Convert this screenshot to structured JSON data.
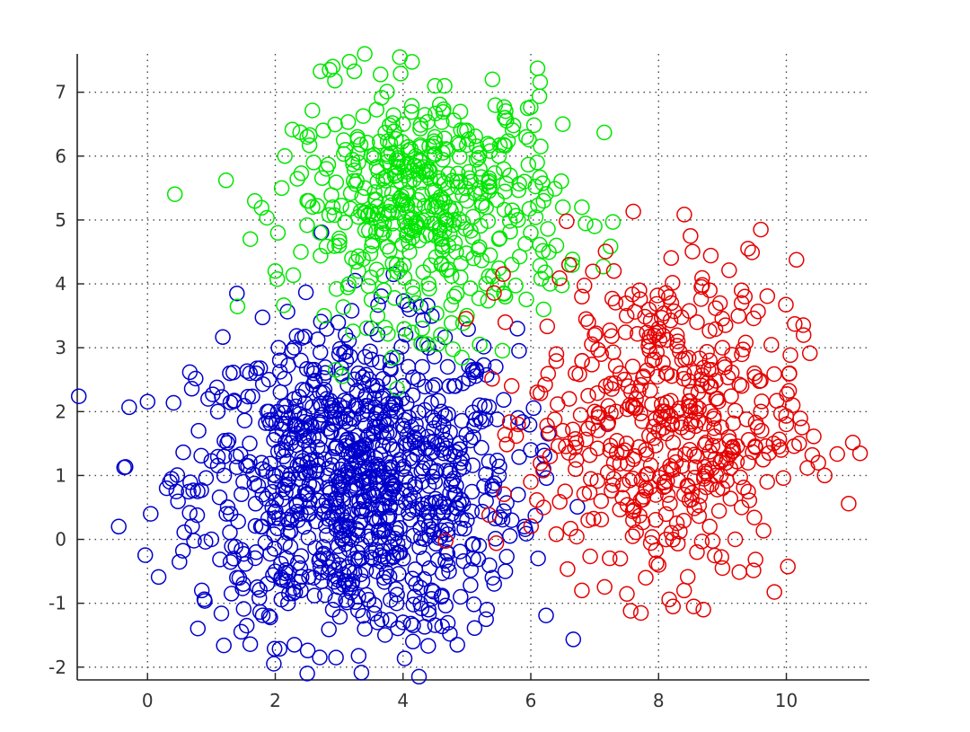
{
  "chart_data": {
    "type": "scatter",
    "title": "",
    "xlabel": "",
    "ylabel": "",
    "xlim": [
      -1.1,
      11.3
    ],
    "ylim": [
      -2.2,
      7.6
    ],
    "x_ticks": [
      0,
      2,
      4,
      6,
      8,
      10
    ],
    "x_tick_labels": [
      "0",
      "2",
      "4",
      "6",
      "8",
      "10"
    ],
    "y_ticks": [
      -2,
      -1,
      0,
      1,
      2,
      3,
      4,
      5,
      6,
      7
    ],
    "y_tick_labels": [
      "-2",
      "-1",
      "0",
      "1",
      "2",
      "3",
      "4",
      "5",
      "6",
      "7"
    ],
    "grid": true,
    "grid_style": "dotted",
    "marker": "circle-open",
    "series": [
      {
        "color": "#0000cc",
        "points": [
          [
            -0.45,
            0.2
          ],
          [
            0.05,
            0.4
          ],
          [
            0.3,
            0.8
          ],
          [
            0.45,
            0.75
          ],
          [
            0.35,
            0.9
          ],
          [
            0.85,
            -0.8
          ],
          [
            0.8,
            1.7
          ],
          [
            0.95,
            2.2
          ],
          [
            1.4,
            3.85
          ],
          [
            1.5,
            -0.7
          ],
          [
            1.9,
            2.5
          ],
          [
            2.05,
            3.0
          ],
          [
            2.5,
            -2.1
          ],
          [
            2.95,
            -1.85
          ],
          [
            3.6,
            -1.3
          ],
          [
            4.25,
            -2.15
          ],
          [
            4.85,
            -1.65
          ],
          [
            5.3,
            -1.25
          ],
          [
            5.45,
            2.7
          ],
          [
            5.6,
            -0.5
          ],
          [
            5.9,
            0.2
          ],
          [
            6.2,
            1.1
          ],
          [
            3.25,
            4.05
          ],
          [
            3.85,
            4.15
          ],
          [
            4.1,
            3.6
          ],
          [
            1.2,
            1.3
          ],
          [
            1.3,
            0.4
          ],
          [
            1.35,
            -0.3
          ],
          [
            1.7,
            -0.2
          ],
          [
            1.9,
            -1.2
          ],
          [
            2.3,
            -1.65
          ],
          [
            2.2,
            1.9
          ],
          [
            2.6,
            2.6
          ],
          [
            3.0,
            2.9
          ],
          [
            3.5,
            3.3
          ],
          [
            4.3,
            2.7
          ],
          [
            4.8,
            2.4
          ],
          [
            5.1,
            1.6
          ],
          [
            5.3,
            0.6
          ],
          [
            5.1,
            -0.3
          ],
          [
            4.6,
            -0.9
          ],
          [
            3.9,
            -1.0
          ],
          [
            3.2,
            -0.7
          ],
          [
            2.7,
            -0.3
          ],
          [
            2.4,
            0.4
          ],
          [
            2.5,
            1.2
          ],
          [
            2.9,
            1.8
          ],
          [
            3.4,
            2.2
          ],
          [
            3.9,
            2.0
          ],
          [
            4.3,
            1.5
          ],
          [
            4.5,
            0.9
          ],
          [
            4.4,
            0.2
          ],
          [
            4.0,
            -0.3
          ],
          [
            3.5,
            -0.2
          ],
          [
            3.1,
            0.3
          ],
          [
            3.0,
            0.9
          ],
          [
            3.3,
            1.4
          ],
          [
            3.7,
            1.6
          ],
          [
            4.0,
            1.1
          ],
          [
            3.8,
            0.5
          ],
          [
            3.4,
            0.6
          ],
          [
            3.6,
            1.0
          ],
          [
            2.8,
            0.6
          ],
          [
            2.2,
            0.1
          ],
          [
            1.8,
            0.7
          ],
          [
            1.6,
            1.5
          ],
          [
            1.9,
            2.0
          ],
          [
            2.7,
            2.3
          ],
          [
            3.3,
            2.6
          ],
          [
            4.0,
            2.4
          ],
          [
            4.6,
            2.0
          ],
          [
            4.9,
            1.2
          ],
          [
            5.0,
            0.3
          ],
          [
            4.7,
            -0.4
          ],
          [
            4.2,
            -0.7
          ],
          [
            3.7,
            -0.6
          ],
          [
            3.0,
            -0.4
          ],
          [
            2.4,
            -0.8
          ],
          [
            2.0,
            -0.5
          ],
          [
            1.5,
            0.9
          ],
          [
            2.1,
            1.4
          ],
          [
            2.6,
            1.6
          ],
          [
            3.2,
            1.1
          ],
          [
            3.5,
            0.0
          ],
          [
            4.1,
            0.6
          ],
          [
            4.8,
            0.7
          ],
          [
            5.5,
            1.0
          ],
          [
            5.7,
            0.3
          ],
          [
            5.8,
            1.9
          ],
          [
            5.2,
            2.1
          ],
          [
            4.4,
            3.0
          ],
          [
            3.8,
            2.8
          ],
          [
            3.1,
            3.2
          ],
          [
            2.4,
            2.8
          ],
          [
            1.7,
            2.6
          ],
          [
            1.1,
            2.0
          ],
          [
            1.0,
            0.0
          ],
          [
            1.4,
            -0.6
          ],
          [
            2.2,
            -1.0
          ],
          [
            2.9,
            -1.1
          ],
          [
            3.4,
            -1.4
          ],
          [
            4.0,
            -1.3
          ],
          [
            4.4,
            -1.1
          ],
          [
            4.9,
            -0.9
          ],
          [
            5.4,
            -0.6
          ],
          [
            5.8,
            0.7
          ],
          [
            6.0,
            1.4
          ],
          [
            1.2,
            1.0
          ],
          [
            2.5,
            0.7
          ],
          [
            3.8,
            1.9
          ],
          [
            4.2,
            1.8
          ],
          [
            3.6,
            2.4
          ],
          [
            2.9,
            2.1
          ],
          [
            2.3,
            2.2
          ],
          [
            1.8,
            1.1
          ],
          [
            4.6,
            1.4
          ],
          [
            5.2,
            1.9
          ],
          [
            4.7,
            2.7
          ],
          [
            3.3,
            -0.9
          ],
          [
            3.9,
            0.1
          ],
          [
            2.6,
            -0.6
          ],
          [
            2.0,
            0.9
          ],
          [
            4.3,
            0.9
          ],
          [
            3.9,
            1.4
          ],
          [
            3.2,
            0.0
          ]
        ]
      },
      {
        "color": "#00e600",
        "points": [
          [
            2.85,
            7.35
          ],
          [
            2.9,
            7.4
          ],
          [
            3.4,
            7.6
          ],
          [
            3.95,
            7.55
          ],
          [
            4.5,
            7.1
          ],
          [
            4.65,
            7.1
          ],
          [
            5.4,
            7.2
          ],
          [
            5.95,
            6.75
          ],
          [
            6.5,
            6.5
          ],
          [
            6.8,
            5.2
          ],
          [
            7.0,
            4.9
          ],
          [
            6.6,
            4.3
          ],
          [
            6.3,
            4.0
          ],
          [
            6.2,
            3.6
          ],
          [
            2.0,
            4.2
          ],
          [
            2.1,
            5.5
          ],
          [
            2.15,
            6.0
          ],
          [
            2.5,
            6.3
          ],
          [
            2.75,
            6.4
          ],
          [
            3.3,
            4.2
          ],
          [
            3.6,
            3.5
          ],
          [
            4.3,
            3.3
          ],
          [
            5.0,
            3.5
          ],
          [
            5.2,
            3.05
          ],
          [
            2.8,
            5.8
          ],
          [
            3.1,
            6.1
          ],
          [
            3.5,
            6.0
          ],
          [
            4.0,
            6.5
          ],
          [
            4.5,
            6.3
          ],
          [
            5.0,
            6.4
          ],
          [
            5.5,
            6.0
          ],
          [
            5.9,
            5.6
          ],
          [
            6.2,
            5.3
          ],
          [
            6.0,
            4.8
          ],
          [
            5.7,
            4.3
          ],
          [
            5.3,
            4.0
          ],
          [
            4.8,
            3.8
          ],
          [
            4.2,
            3.7
          ],
          [
            3.7,
            3.9
          ],
          [
            3.2,
            4.4
          ],
          [
            2.7,
            4.8
          ],
          [
            2.5,
            5.3
          ],
          [
            2.9,
            5.2
          ],
          [
            3.4,
            5.5
          ],
          [
            3.9,
            5.7
          ],
          [
            4.4,
            5.8
          ],
          [
            4.9,
            5.6
          ],
          [
            5.3,
            5.2
          ],
          [
            5.5,
            4.7
          ],
          [
            5.1,
            4.4
          ],
          [
            4.6,
            4.3
          ],
          [
            4.1,
            4.5
          ],
          [
            3.7,
            4.8
          ],
          [
            3.6,
            5.1
          ],
          [
            4.0,
            5.3
          ],
          [
            4.5,
            5.2
          ],
          [
            4.8,
            5.0
          ],
          [
            4.6,
            4.7
          ],
          [
            4.2,
            4.9
          ],
          [
            4.3,
            5.4
          ],
          [
            3.8,
            6.2
          ],
          [
            4.7,
            6.1
          ],
          [
            5.6,
            6.6
          ],
          [
            5.8,
            5.0
          ],
          [
            2.4,
            4.5
          ],
          [
            3.0,
            4.6
          ],
          [
            3.5,
            4.1
          ],
          [
            4.9,
            4.1
          ],
          [
            5.6,
            3.8
          ],
          [
            6.4,
            4.6
          ],
          [
            3.3,
            5.9
          ],
          [
            4.2,
            6.0
          ],
          [
            5.2,
            5.8
          ],
          [
            5.0,
            5.3
          ],
          [
            3.9,
            4.3
          ],
          [
            4.4,
            4.0
          ],
          [
            4.7,
            5.5
          ],
          [
            3.6,
            5.6
          ],
          [
            2.6,
            5.9
          ],
          [
            6.1,
            5.9
          ]
        ]
      },
      {
        "color": "#e60000",
        "points": [
          [
            5.6,
            3.4
          ],
          [
            5.7,
            2.4
          ],
          [
            5.8,
            1.8
          ],
          [
            6.0,
            0.9
          ],
          [
            6.2,
            0.5
          ],
          [
            6.6,
            4.3
          ],
          [
            6.8,
            3.8
          ],
          [
            7.3,
            4.2
          ],
          [
            8.2,
            3.7
          ],
          [
            8.5,
            4.75
          ],
          [
            9.4,
            4.55
          ],
          [
            9.6,
            4.85
          ],
          [
            9.3,
            3.9
          ],
          [
            9.35,
            3.8
          ],
          [
            9.3,
            3.7
          ],
          [
            10.1,
            2.1
          ],
          [
            10.2,
            1.5
          ],
          [
            10.5,
            1.2
          ],
          [
            10.6,
            1.0
          ],
          [
            6.8,
            -0.8
          ],
          [
            7.8,
            -0.6
          ],
          [
            8.4,
            -0.8
          ],
          [
            8.55,
            -1.05
          ],
          [
            8.7,
            -1.1
          ],
          [
            9.0,
            -0.45
          ],
          [
            9.2,
            0.0
          ],
          [
            6.7,
            2.6
          ],
          [
            7.0,
            3.2
          ],
          [
            7.5,
            3.5
          ],
          [
            8.0,
            3.3
          ],
          [
            8.6,
            3.4
          ],
          [
            9.0,
            3.0
          ],
          [
            9.3,
            2.4
          ],
          [
            9.6,
            2.0
          ],
          [
            9.8,
            1.5
          ],
          [
            9.7,
            0.9
          ],
          [
            9.3,
            0.5
          ],
          [
            8.8,
            0.2
          ],
          [
            8.2,
            0.1
          ],
          [
            7.6,
            0.3
          ],
          [
            7.1,
            0.6
          ],
          [
            6.7,
            1.1
          ],
          [
            6.5,
            1.7
          ],
          [
            6.6,
            2.2
          ],
          [
            7.0,
            2.0
          ],
          [
            7.4,
            2.6
          ],
          [
            7.9,
            2.8
          ],
          [
            8.4,
            2.6
          ],
          [
            8.9,
            2.2
          ],
          [
            9.1,
            1.6
          ],
          [
            8.9,
            1.0
          ],
          [
            8.4,
            0.7
          ],
          [
            7.8,
            0.8
          ],
          [
            7.3,
            1.2
          ],
          [
            7.2,
            1.8
          ],
          [
            7.6,
            2.1
          ],
          [
            8.1,
            2.0
          ],
          [
            8.5,
            1.8
          ],
          [
            8.6,
            1.3
          ],
          [
            8.2,
            1.1
          ],
          [
            7.8,
            1.4
          ],
          [
            8.0,
            1.7
          ],
          [
            7.5,
            1.5
          ],
          [
            8.8,
            2.8
          ],
          [
            9.5,
            2.6
          ],
          [
            6.9,
            3.4
          ],
          [
            7.7,
            3.9
          ],
          [
            8.8,
            3.9
          ],
          [
            6.4,
            2.9
          ],
          [
            6.1,
            2.3
          ],
          [
            6.3,
            1.3
          ],
          [
            6.9,
            0.3
          ],
          [
            7.4,
            -0.3
          ],
          [
            8.0,
            -0.4
          ],
          [
            8.6,
            -0.2
          ],
          [
            9.4,
            1.2
          ],
          [
            10.0,
            1.8
          ],
          [
            7.1,
            2.9
          ],
          [
            8.3,
            3.1
          ],
          [
            9.0,
            0.8
          ]
        ]
      }
    ]
  }
}
